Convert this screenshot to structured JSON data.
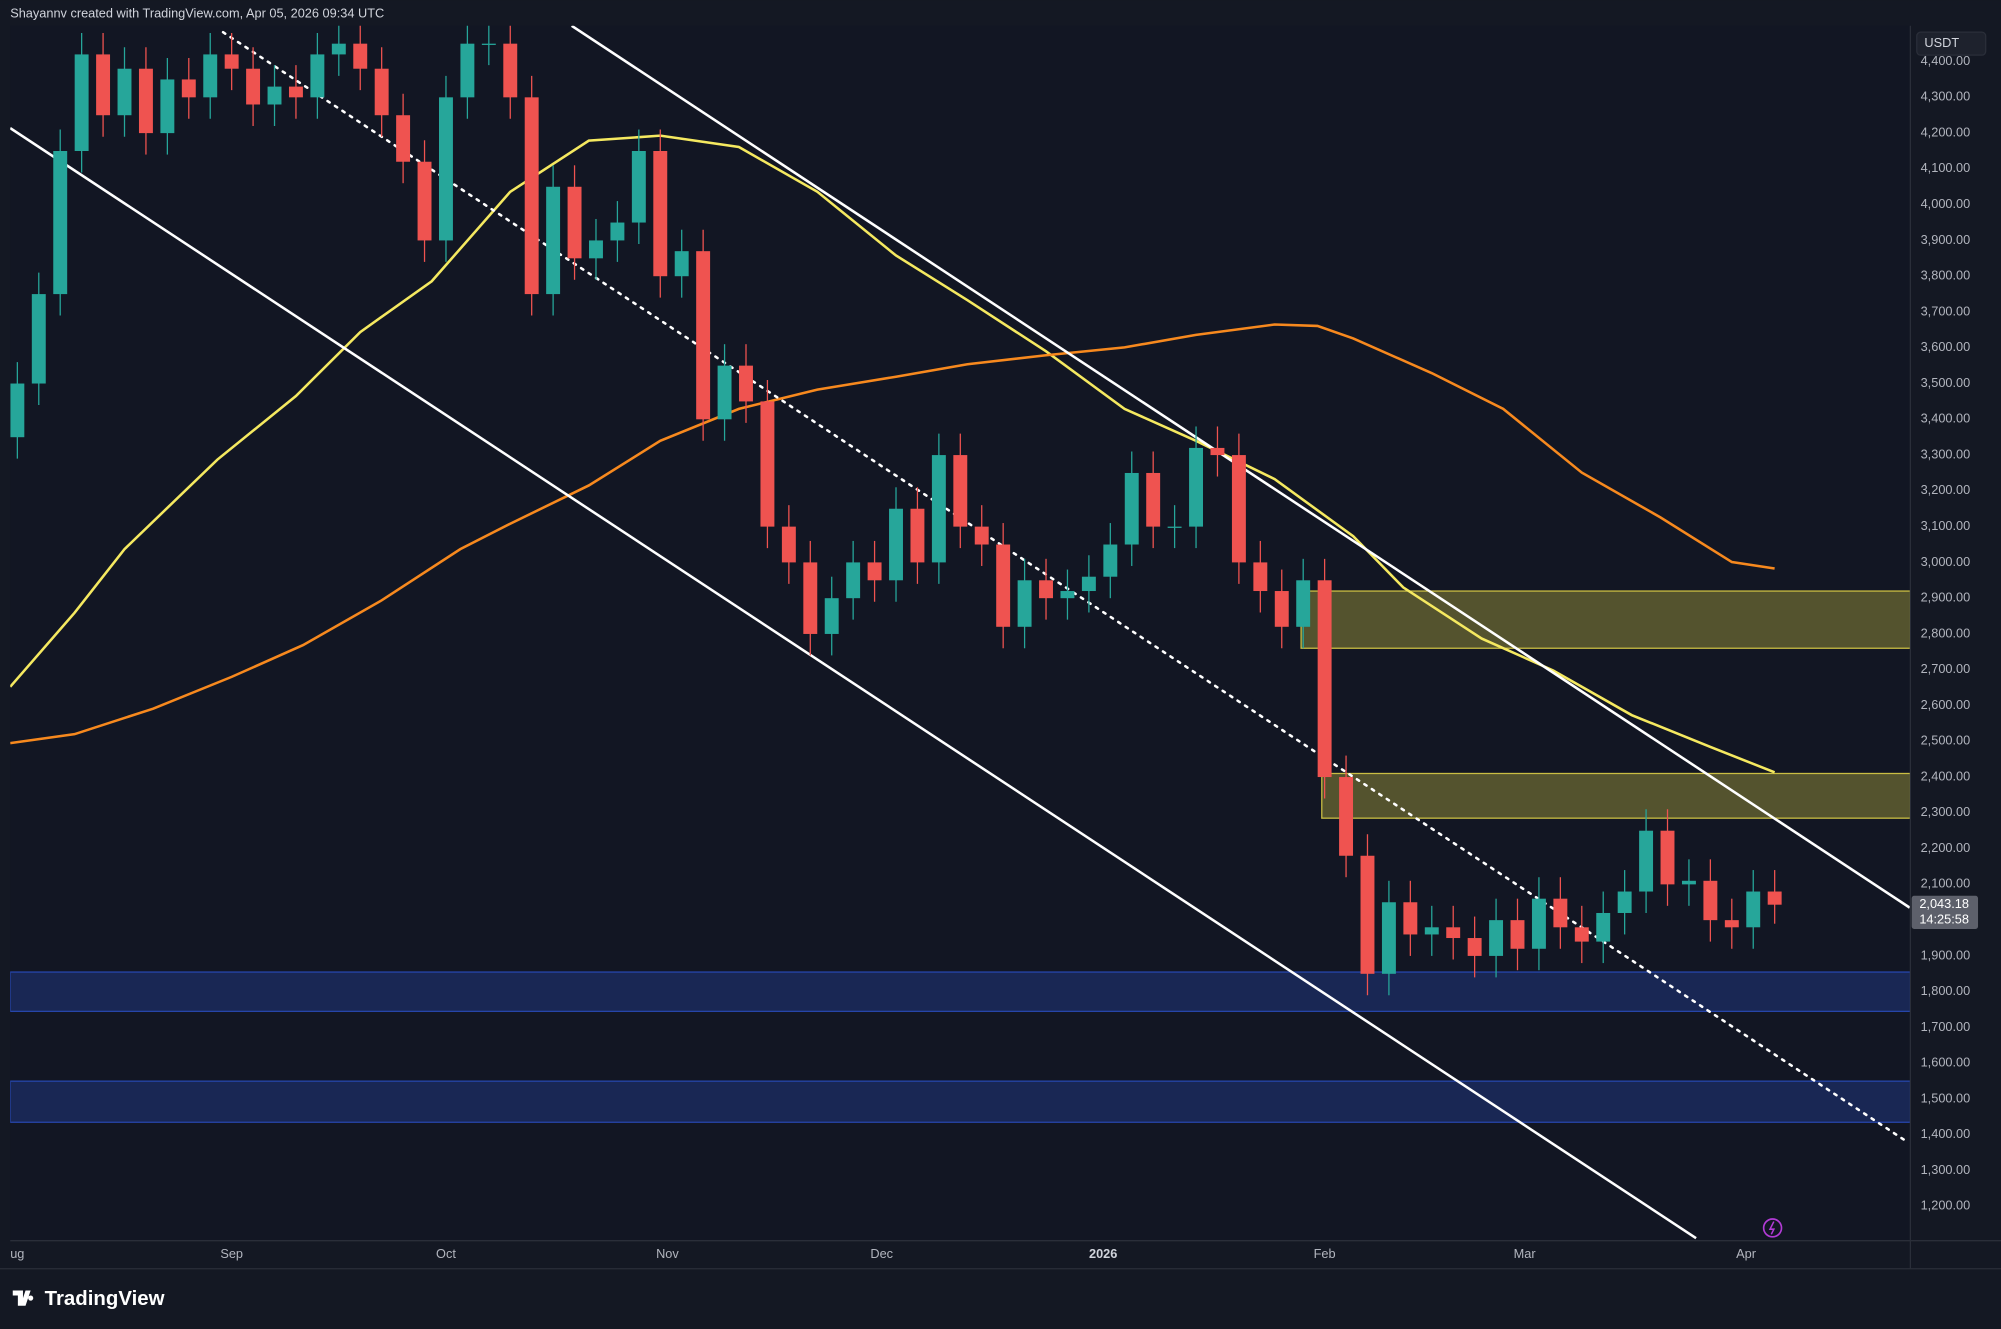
{
  "header": "Shayannv created with TradingView.com, Apr 05, 2026 09:34 UTC",
  "brand": "TradingView",
  "chart_data": {
    "type": "candlestick",
    "currency": "USDT",
    "xlim": [
      0,
      266
    ],
    "ylim": [
      1104,
      4500
    ],
    "xticks": [
      {
        "value": 0,
        "label": "ug"
      },
      {
        "value": 31,
        "label": "Sep"
      },
      {
        "value": 61,
        "label": "Oct"
      },
      {
        "value": 92,
        "label": "Nov"
      },
      {
        "value": 122,
        "label": "Dec"
      },
      {
        "value": 153,
        "label": "2026"
      },
      {
        "value": 184,
        "label": "Feb"
      },
      {
        "value": 212,
        "label": "Mar"
      },
      {
        "value": 243,
        "label": "Apr"
      }
    ],
    "yticks": [
      {
        "value": 1200,
        "label": "1,200.00"
      },
      {
        "value": 1300,
        "label": "1,300.00"
      },
      {
        "value": 1400,
        "label": "1,400.00"
      },
      {
        "value": 1500,
        "label": "1,500.00"
      },
      {
        "value": 1600,
        "label": "1,600.00"
      },
      {
        "value": 1700,
        "label": "1,700.00"
      },
      {
        "value": 1800,
        "label": "1,800.00"
      },
      {
        "value": 1900,
        "label": "1,900.00"
      },
      {
        "value": 2100,
        "label": "2,100.00"
      },
      {
        "value": 2200,
        "label": "2,200.00"
      },
      {
        "value": 2300,
        "label": "2,300.00"
      },
      {
        "value": 2400,
        "label": "2,400.00"
      },
      {
        "value": 2500,
        "label": "2,500.00"
      },
      {
        "value": 2600,
        "label": "2,600.00"
      },
      {
        "value": 2700,
        "label": "2,700.00"
      },
      {
        "value": 2800,
        "label": "2,800.00"
      },
      {
        "value": 2900,
        "label": "2,900.00"
      },
      {
        "value": 3000,
        "label": "3,000.00"
      },
      {
        "value": 3100,
        "label": "3,100.00"
      },
      {
        "value": 3200,
        "label": "3,200.00"
      },
      {
        "value": 3300,
        "label": "3,300.00"
      },
      {
        "value": 3400,
        "label": "3,400.00"
      },
      {
        "value": 3500,
        "label": "3,500.00"
      },
      {
        "value": 3600,
        "label": "3,600.00"
      },
      {
        "value": 3700,
        "label": "3,700.00"
      },
      {
        "value": 3800,
        "label": "3,800.00"
      },
      {
        "value": 3900,
        "label": "3,900.00"
      },
      {
        "value": 4000,
        "label": "4,000.00"
      },
      {
        "value": 4100,
        "label": "4,100.00"
      },
      {
        "value": 4200,
        "label": "4,200.00"
      },
      {
        "value": 4300,
        "label": "4,300.00"
      },
      {
        "value": 4400,
        "label": "4,400.00"
      }
    ],
    "up_color": "#26a69a",
    "down_color": "#ef5350",
    "candles": {
      "x": [
        1,
        4,
        7,
        10,
        13,
        16,
        19,
        22,
        25,
        28,
        31,
        34,
        37,
        40,
        43,
        46,
        49,
        52,
        55,
        58,
        61,
        64,
        67,
        70,
        73,
        76,
        79,
        82,
        85,
        88,
        91,
        94,
        97,
        100,
        103,
        106,
        109,
        112,
        115,
        118,
        121,
        124,
        127,
        130,
        133,
        136,
        139,
        142,
        145,
        148,
        151,
        154,
        157,
        160,
        163,
        166,
        169,
        172,
        175,
        178,
        181,
        184,
        187,
        190,
        193,
        196,
        199,
        202,
        205,
        208,
        211,
        214,
        217,
        220,
        223,
        226,
        229,
        232,
        235,
        238,
        241,
        244,
        247
      ],
      "open": [
        3350,
        3500,
        3750,
        4150,
        4420,
        4250,
        4380,
        4200,
        4350,
        4300,
        4420,
        4380,
        4280,
        4330,
        4300,
        4420,
        4450,
        4380,
        4250,
        4120,
        3900,
        4300,
        4450,
        4450,
        4300,
        3750,
        4050,
        3850,
        3900,
        3950,
        4150,
        3800,
        3870,
        3400,
        3550,
        3450,
        3100,
        3000,
        2800,
        2900,
        3000,
        2950,
        3150,
        3000,
        3300,
        3100,
        3050,
        2820,
        2950,
        2900,
        2920,
        2960,
        3050,
        3250,
        3100,
        3100,
        3320,
        3300,
        3000,
        2920,
        2820,
        2950,
        2400,
        2180,
        1850,
        2050,
        1960,
        1980,
        1950,
        1900,
        2000,
        1920,
        2060,
        1980,
        1940,
        2020,
        2080,
        2250,
        2100,
        2110,
        2000,
        1980,
        2080
      ],
      "high": [
        3560,
        3810,
        4210,
        4480,
        4480,
        4440,
        4440,
        4410,
        4410,
        4480,
        4480,
        4440,
        4390,
        4390,
        4480,
        4510,
        4510,
        4440,
        4310,
        4180,
        4360,
        4510,
        4510,
        4510,
        4360,
        4110,
        4110,
        3960,
        4010,
        4210,
        4210,
        3930,
        3930,
        3610,
        3610,
        3510,
        3160,
        3060,
        2960,
        3060,
        3060,
        3210,
        3210,
        3360,
        3360,
        3160,
        3110,
        3010,
        3010,
        2980,
        3020,
        3110,
        3310,
        3310,
        3160,
        3380,
        3380,
        3360,
        3060,
        2980,
        3010,
        3010,
        2460,
        2240,
        2110,
        2110,
        2040,
        2040,
        2010,
        2060,
        2060,
        2120,
        2120,
        2040,
        2080,
        2140,
        2310,
        2310,
        2170,
        2170,
        2060,
        2140,
        2140
      ],
      "low": [
        3290,
        3440,
        3690,
        4090,
        4190,
        4190,
        4140,
        4140,
        4240,
        4240,
        4320,
        4220,
        4220,
        4240,
        4240,
        4360,
        4320,
        4190,
        4060,
        3840,
        3840,
        4240,
        4390,
        4240,
        3690,
        3690,
        3790,
        3790,
        3840,
        3890,
        3740,
        3740,
        3340,
        3340,
        3390,
        3040,
        2940,
        2740,
        2740,
        2840,
        2890,
        2890,
        2940,
        2940,
        3040,
        2990,
        2760,
        2760,
        2840,
        2840,
        2860,
        2900,
        2990,
        3040,
        3040,
        3040,
        3240,
        2940,
        2860,
        2760,
        2760,
        2340,
        2120,
        1790,
        1790,
        1900,
        1900,
        1890,
        1840,
        1840,
        1860,
        1860,
        1920,
        1880,
        1880,
        1960,
        2020,
        2040,
        2040,
        1940,
        1920,
        1920,
        1990
      ],
      "close": [
        3500,
        3750,
        4150,
        4420,
        4250,
        4380,
        4200,
        4350,
        4300,
        4420,
        4380,
        4280,
        4330,
        4300,
        4420,
        4450,
        4380,
        4250,
        4120,
        3900,
        4300,
        4450,
        4450,
        4300,
        3750,
        4050,
        3850,
        3900,
        3950,
        4150,
        3800,
        3870,
        3400,
        3550,
        3450,
        3100,
        3000,
        2800,
        2900,
        3000,
        2950,
        3150,
        3000,
        3300,
        3100,
        3050,
        2820,
        2950,
        2900,
        2920,
        2960,
        3050,
        3250,
        3100,
        3100,
        3320,
        3300,
        3000,
        2920,
        2820,
        2950,
        2400,
        2180,
        1850,
        2050,
        1960,
        1980,
        1950,
        1900,
        2000,
        1920,
        2060,
        1980,
        1940,
        2020,
        2080,
        2250,
        2100,
        2110,
        2000,
        1980,
        2080,
        2043.18
      ]
    },
    "last_price": {
      "value": 2043.18,
      "label": "2,043.18"
    },
    "countdown": "14:25:58",
    "moving_averages": [
      {
        "color": "#f5e960",
        "x": [
          0,
          9,
          16,
          29,
          40,
          49,
          59,
          70,
          81,
          91,
          102,
          113,
          124,
          134,
          145,
          156,
          166,
          177,
          188,
          195,
          206,
          216,
          227,
          238,
          247
        ],
        "values": [
          2652,
          2859,
          3037,
          3287,
          3465,
          3644,
          3786,
          4036,
          4179,
          4193,
          4161,
          4036,
          3858,
          3733,
          3590,
          3429,
          3340,
          3233,
          3073,
          2930,
          2787,
          2698,
          2573,
          2484,
          2413
        ]
      },
      {
        "color": "#f7891e",
        "x": [
          0,
          9,
          20,
          31,
          41,
          52,
          63,
          70,
          81,
          91,
          102,
          113,
          124,
          134,
          145,
          156,
          166,
          177,
          183,
          188,
          199,
          209,
          220,
          231,
          241,
          247
        ],
        "values": [
          2495,
          2520,
          2591,
          2680,
          2769,
          2894,
          3037,
          3108,
          3215,
          3340,
          3429,
          3483,
          3519,
          3554,
          3579,
          3601,
          3636,
          3665,
          3661,
          3626,
          3529,
          3429,
          3251,
          3126,
          3001,
          2983
        ]
      }
    ],
    "trendlines": [
      {
        "color": "#ffffff",
        "dashed": false,
        "x": [
          78.6,
          265.9
        ],
        "values": [
          4500,
          2035
        ]
      },
      {
        "color": "#ffffff",
        "dashed": false,
        "x": [
          0,
          236
        ],
        "values": [
          4214,
          1111
        ]
      },
      {
        "color": "#ffffff",
        "dashed": true,
        "x": [
          29.8,
          265.2
        ],
        "values": [
          4482,
          1385
        ]
      }
    ],
    "zones": [
      {
        "fill": "#f0e14a",
        "x_start": 180.7,
        "range": [
          2760,
          2920
        ]
      },
      {
        "fill": "#f0e14a",
        "x_start": 183.6,
        "range": [
          2285,
          2410
        ]
      },
      {
        "fill": "#2a50c8",
        "x_start": 0,
        "range": [
          1745,
          1855
        ]
      },
      {
        "fill": "#2a50c8",
        "x_start": 0,
        "range": [
          1435,
          1550
        ]
      }
    ]
  }
}
